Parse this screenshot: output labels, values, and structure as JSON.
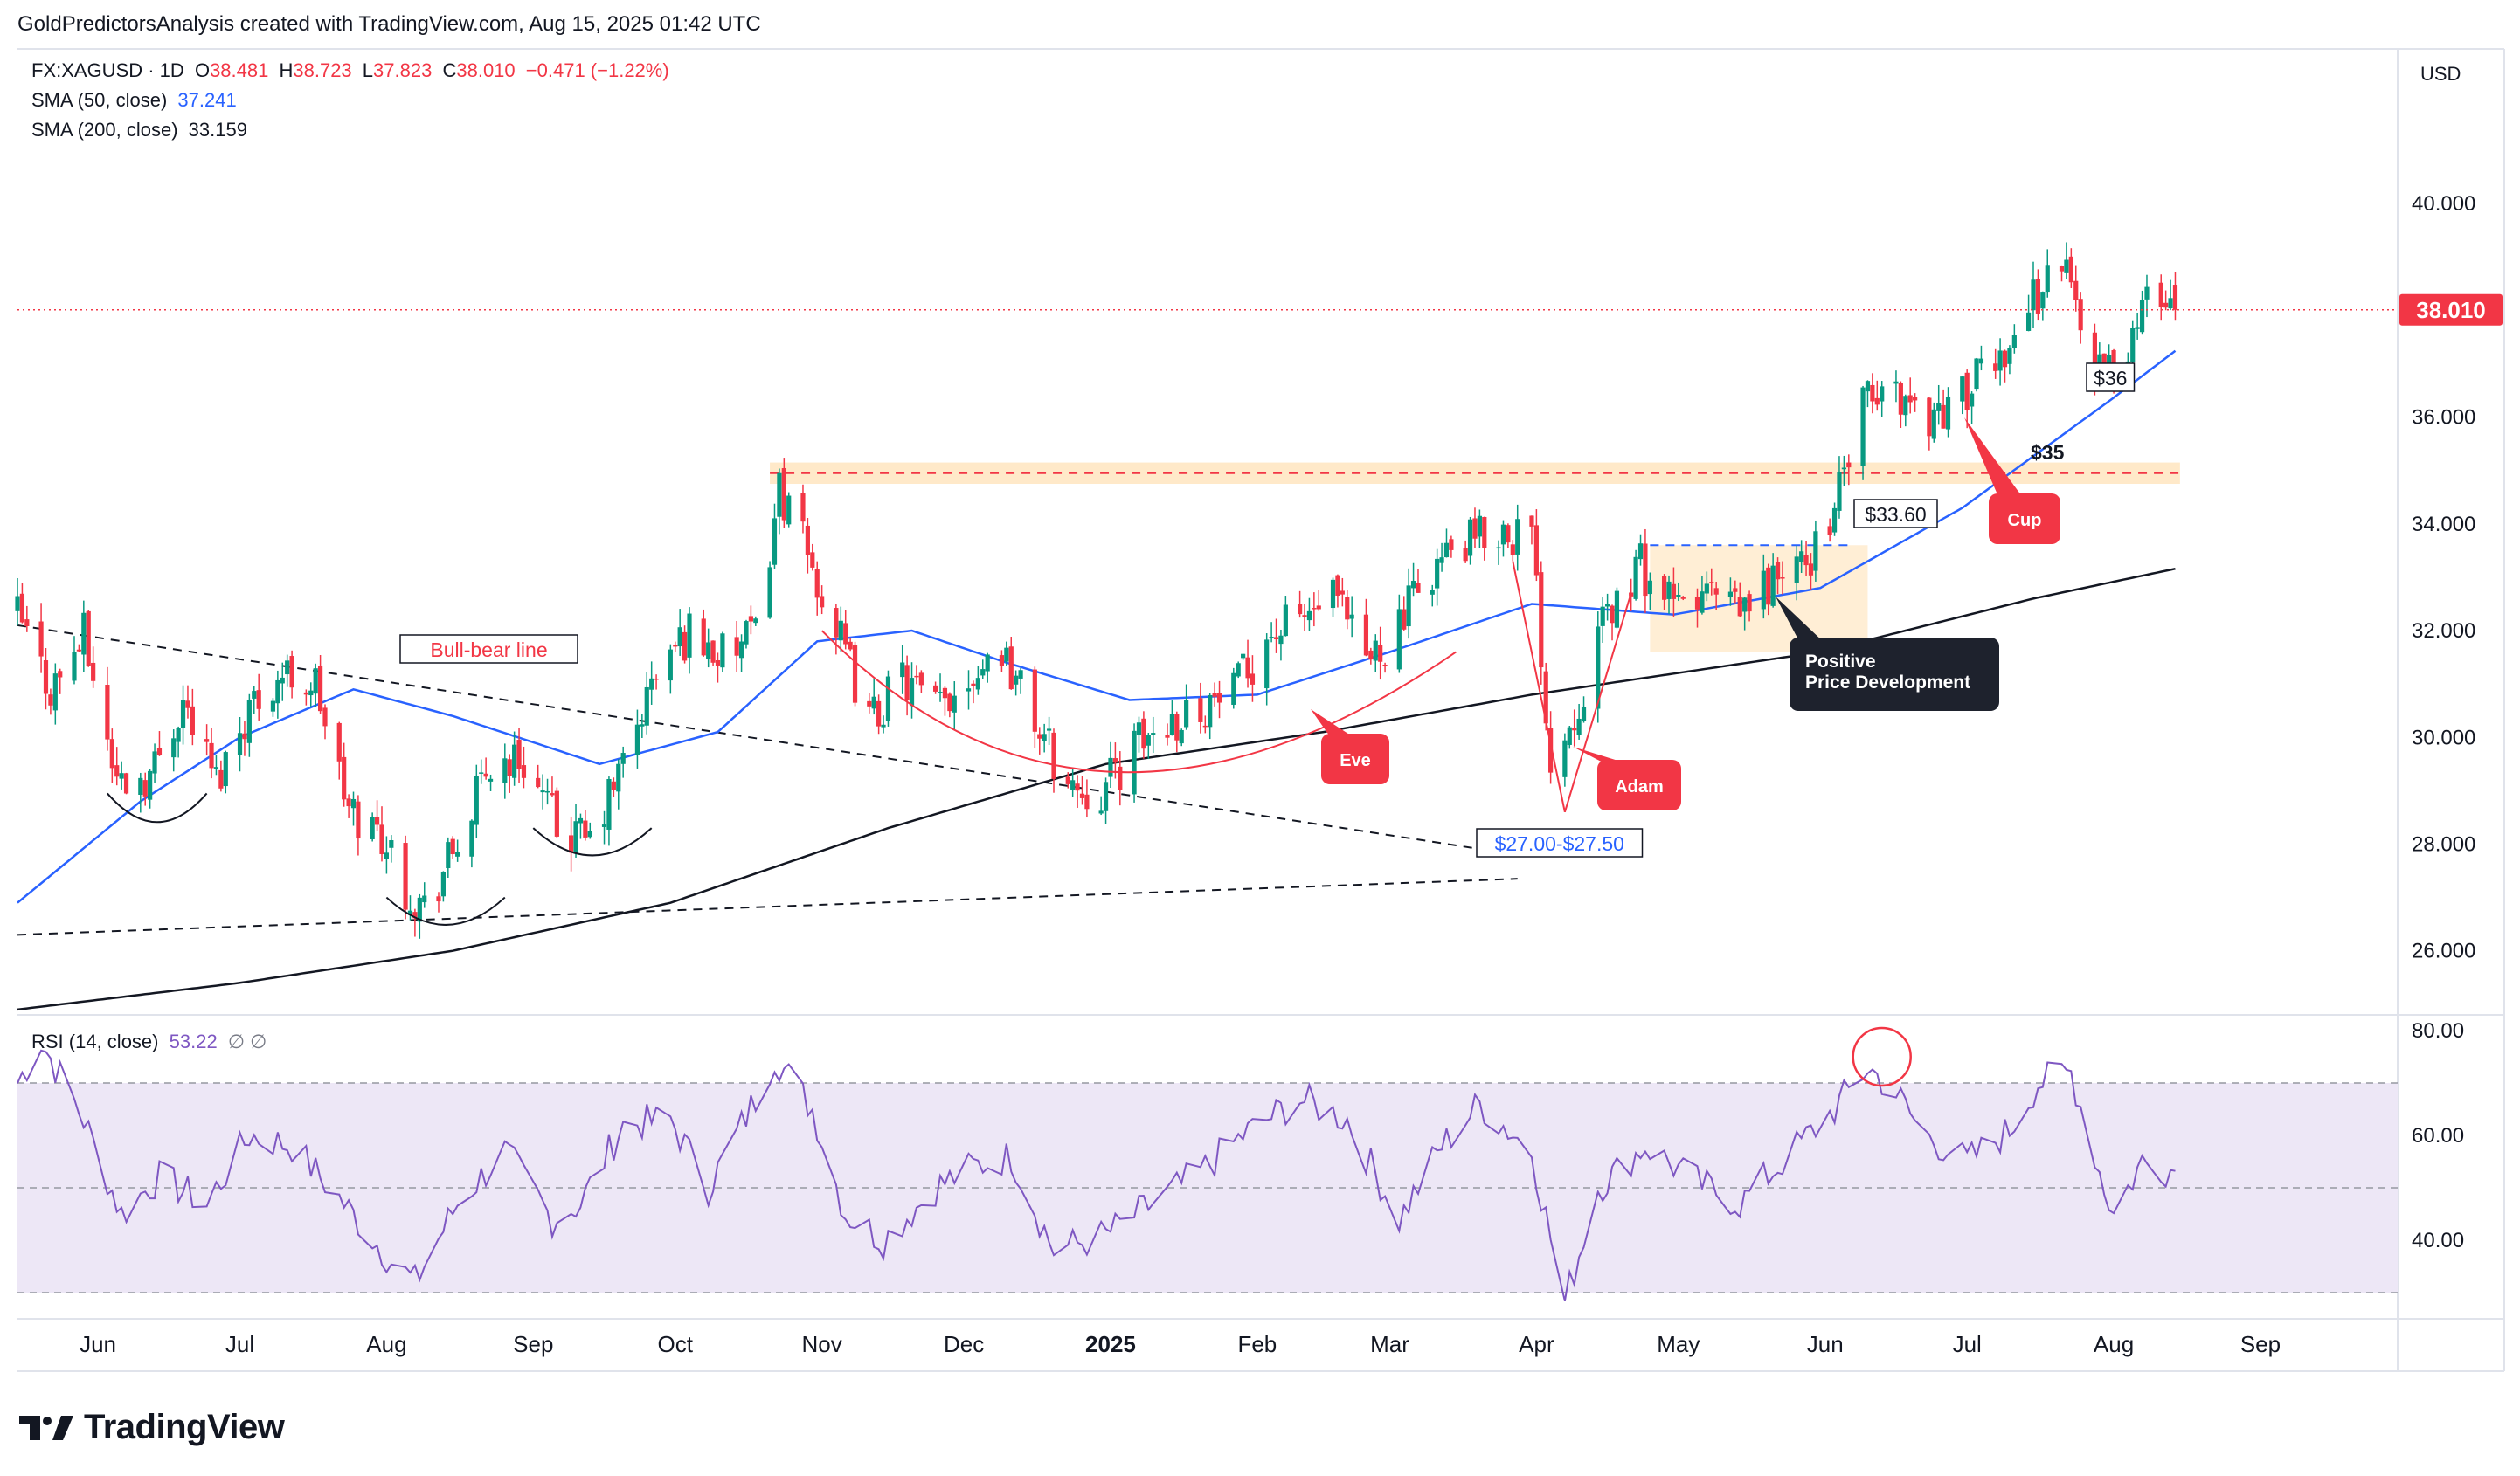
{
  "header": {
    "byline": "GoldPredictorsAnalysis created with TradingView.com, Aug 15, 2025 01:42 UTC"
  },
  "legend": {
    "symbol": "FX:XAGUSD · 1D",
    "open_label": "O",
    "open": "38.481",
    "high_label": "H",
    "high": "38.723",
    "low_label": "L",
    "low": "37.823",
    "close_label": "C",
    "close": "38.010",
    "change": "−0.471 (−1.22%)",
    "sma50_label": "SMA (50, close)",
    "sma50_value": "37.241",
    "sma200_label": "SMA (200, close)",
    "sma200_value": "33.159",
    "rsi_label": "RSI (14, close)",
    "rsi_value": "53.22",
    "rsi_extra": "∅ ∅"
  },
  "currency": "USD",
  "footer": {
    "brand": "TradingView"
  },
  "colors": {
    "up": "#089981",
    "down": "#f23645",
    "sma50": "#2962ff",
    "sma200": "#131722",
    "rsi": "#7e57c2",
    "rsi_band": "#ede7f6",
    "price_label": "#f23645",
    "zone": "#ffe0b2",
    "annotation_red": "#f23645",
    "annotation_dark": "#1e222d"
  },
  "chart_data": [
    {
      "type": "candlestick",
      "title": "FX:XAGUSD · 1D",
      "x_ticks": [
        "Jun",
        "Jul",
        "Aug",
        "Sep",
        "Oct",
        "Nov",
        "Dec",
        "2025",
        "Feb",
        "Mar",
        "Apr",
        "May",
        "Jun",
        "Jul",
        "Aug",
        "Sep"
      ],
      "x_range": [
        "2024-05-15",
        "2025-09-30"
      ],
      "y_range": [
        24.8,
        42.9
      ],
      "y_ticks": [
        "40.000",
        "38.000",
        "36.000",
        "34.000",
        "32.000",
        "30.000",
        "28.000",
        "26.000"
      ],
      "last_price_label": "38.010",
      "last_price": 38.01,
      "closes_weekly": [
        [
          "2024-05-15",
          32.3
        ],
        [
          "2024-05-22",
          30.9
        ],
        [
          "2024-05-29",
          31.9
        ],
        [
          "2024-06-05",
          29.2
        ],
        [
          "2024-06-12",
          29.3
        ],
        [
          "2024-06-19",
          30.7
        ],
        [
          "2024-06-26",
          29.2
        ],
        [
          "2024-07-03",
          30.6
        ],
        [
          "2024-07-10",
          31.2
        ],
        [
          "2024-07-17",
          31.0
        ],
        [
          "2024-07-24",
          28.6
        ],
        [
          "2024-07-31",
          28.2
        ],
        [
          "2024-08-05",
          27.2
        ],
        [
          "2024-08-09",
          26.8
        ],
        [
          "2024-08-16",
          28.0
        ],
        [
          "2024-08-23",
          29.5
        ],
        [
          "2024-08-30",
          29.6
        ],
        [
          "2024-09-06",
          28.3
        ],
        [
          "2024-09-13",
          28.0
        ],
        [
          "2024-09-20",
          29.5
        ],
        [
          "2024-09-27",
          31.2
        ],
        [
          "2024-10-04",
          32.0
        ],
        [
          "2024-10-11",
          31.5
        ],
        [
          "2024-10-18",
          31.9
        ],
        [
          "2024-10-23",
          34.7
        ],
        [
          "2024-10-28",
          33.6
        ],
        [
          "2024-11-04",
          32.0
        ],
        [
          "2024-11-11",
          30.3
        ],
        [
          "2024-11-18",
          31.1
        ],
        [
          "2024-11-25",
          30.5
        ],
        [
          "2024-12-02",
          31.2
        ],
        [
          "2024-12-09",
          31.7
        ],
        [
          "2024-12-16",
          30.3
        ],
        [
          "2024-12-23",
          29.1
        ],
        [
          "2024-12-30",
          29.0
        ],
        [
          "2025-01-06",
          29.8
        ],
        [
          "2025-01-13",
          30.3
        ],
        [
          "2025-01-20",
          30.6
        ],
        [
          "2025-01-27",
          30.8
        ],
        [
          "2025-02-03",
          31.9
        ],
        [
          "2025-02-10",
          32.2
        ],
        [
          "2025-02-17",
          32.6
        ],
        [
          "2025-02-24",
          31.4
        ],
        [
          "2025-03-03",
          32.1
        ],
        [
          "2025-03-10",
          33.2
        ],
        [
          "2025-03-17",
          33.6
        ],
        [
          "2025-03-24",
          33.9
        ],
        [
          "2025-03-31",
          33.8
        ],
        [
          "2025-04-04",
          29.5
        ],
        [
          "2025-04-09",
          30.5
        ],
        [
          "2025-04-16",
          32.3
        ],
        [
          "2025-04-23",
          33.2
        ],
        [
          "2025-04-30",
          32.4
        ],
        [
          "2025-05-07",
          32.7
        ],
        [
          "2025-05-14",
          32.3
        ],
        [
          "2025-05-21",
          33.0
        ],
        [
          "2025-05-28",
          33.2
        ],
        [
          "2025-06-04",
          34.6
        ],
        [
          "2025-06-09",
          36.2
        ],
        [
          "2025-06-16",
          36.5
        ],
        [
          "2025-06-23",
          36.0
        ],
        [
          "2025-06-30",
          36.4
        ],
        [
          "2025-07-07",
          37.0
        ],
        [
          "2025-07-14",
          38.1
        ],
        [
          "2025-07-21",
          39.0
        ],
        [
          "2025-07-28",
          37.0
        ],
        [
          "2025-08-01",
          36.8
        ],
        [
          "2025-08-06",
          37.8
        ],
        [
          "2025-08-11",
          38.4
        ],
        [
          "2025-08-14",
          38.01
        ]
      ],
      "sma50": [
        [
          "2024-05-15",
          26.9
        ],
        [
          "2024-06-10",
          28.8
        ],
        [
          "2024-07-01",
          30.0
        ],
        [
          "2024-07-25",
          30.9
        ],
        [
          "2024-08-15",
          30.4
        ],
        [
          "2024-09-15",
          29.5
        ],
        [
          "2024-10-10",
          30.1
        ],
        [
          "2024-10-31",
          31.8
        ],
        [
          "2024-11-20",
          32.0
        ],
        [
          "2024-12-10",
          31.4
        ],
        [
          "2025-01-05",
          30.7
        ],
        [
          "2025-02-01",
          30.8
        ],
        [
          "2025-03-01",
          31.6
        ],
        [
          "2025-03-31",
          32.5
        ],
        [
          "2025-04-30",
          32.3
        ],
        [
          "2025-05-31",
          32.8
        ],
        [
          "2025-06-30",
          34.3
        ],
        [
          "2025-07-31",
          36.3
        ],
        [
          "2025-08-14",
          37.241
        ]
      ],
      "sma200": [
        [
          "2024-05-15",
          24.9
        ],
        [
          "2024-07-01",
          25.4
        ],
        [
          "2024-08-15",
          26.0
        ],
        [
          "2024-09-30",
          26.9
        ],
        [
          "2024-11-15",
          28.3
        ],
        [
          "2024-12-31",
          29.5
        ],
        [
          "2025-02-15",
          30.1
        ],
        [
          "2025-03-31",
          30.8
        ],
        [
          "2025-05-31",
          31.6
        ],
        [
          "2025-07-15",
          32.6
        ],
        [
          "2025-08-14",
          33.159
        ]
      ],
      "annotations": [
        {
          "text": "Bull-bear line"
        },
        {
          "text": "Eve"
        },
        {
          "text": "Adam"
        },
        {
          "text": "$27.00-$27.50"
        },
        {
          "text": "$35",
          "price": 35
        },
        {
          "text": "$33.60",
          "price": 33.6
        },
        {
          "text": "$36",
          "price": 36
        },
        {
          "text": "Cup"
        },
        {
          "text": "Positive\nPrice Development"
        }
      ]
    },
    {
      "type": "line",
      "title": "RSI (14, close)",
      "y_range": [
        25,
        83
      ],
      "y_ticks": [
        "80.00",
        "60.00",
        "40.00"
      ],
      "overbought": 70,
      "middle": 50,
      "oversold": 30,
      "last_value": 53.22,
      "rsi": [
        [
          "2024-05-15",
          70
        ],
        [
          "2024-05-20",
          78
        ],
        [
          "2024-05-29",
          63
        ],
        [
          "2024-06-06",
          45
        ],
        [
          "2024-06-14",
          52
        ],
        [
          "2024-06-24",
          47
        ],
        [
          "2024-07-03",
          60
        ],
        [
          "2024-07-12",
          58
        ],
        [
          "2024-07-22",
          48
        ],
        [
          "2024-08-02",
          36
        ],
        [
          "2024-08-07",
          32
        ],
        [
          "2024-08-16",
          47
        ],
        [
          "2024-08-26",
          57
        ],
        [
          "2024-09-05",
          44
        ],
        [
          "2024-09-11",
          47
        ],
        [
          "2024-09-20",
          62
        ],
        [
          "2024-09-30",
          63
        ],
        [
          "2024-10-08",
          50
        ],
        [
          "2024-10-18",
          67
        ],
        [
          "2024-10-22",
          75
        ],
        [
          "2024-10-30",
          65
        ],
        [
          "2024-11-06",
          45
        ],
        [
          "2024-11-14",
          40
        ],
        [
          "2024-11-25",
          50
        ],
        [
          "2024-12-03",
          54
        ],
        [
          "2024-12-11",
          56
        ],
        [
          "2024-12-20",
          38
        ],
        [
          "2024-12-31",
          41
        ],
        [
          "2025-01-10",
          47
        ],
        [
          "2025-01-20",
          53
        ],
        [
          "2025-01-29",
          60
        ],
        [
          "2025-02-10",
          67
        ],
        [
          "2025-02-20",
          63
        ],
        [
          "2025-03-03",
          44
        ],
        [
          "2025-03-12",
          58
        ],
        [
          "2025-03-20",
          66
        ],
        [
          "2025-03-31",
          57
        ],
        [
          "2025-04-07",
          28
        ],
        [
          "2025-04-14",
          50
        ],
        [
          "2025-04-24",
          58
        ],
        [
          "2025-05-05",
          51
        ],
        [
          "2025-05-14",
          47
        ],
        [
          "2025-05-23",
          55
        ],
        [
          "2025-06-03",
          65
        ],
        [
          "2025-06-10",
          73
        ],
        [
          "2025-06-16",
          68
        ],
        [
          "2025-06-22",
          60
        ],
        [
          "2025-07-01",
          55
        ],
        [
          "2025-07-10",
          61
        ],
        [
          "2025-07-16",
          70
        ],
        [
          "2025-07-23",
          72
        ],
        [
          "2025-07-30",
          50
        ],
        [
          "2025-08-01",
          45
        ],
        [
          "2025-08-07",
          55
        ],
        [
          "2025-08-14",
          53.22
        ]
      ]
    }
  ]
}
